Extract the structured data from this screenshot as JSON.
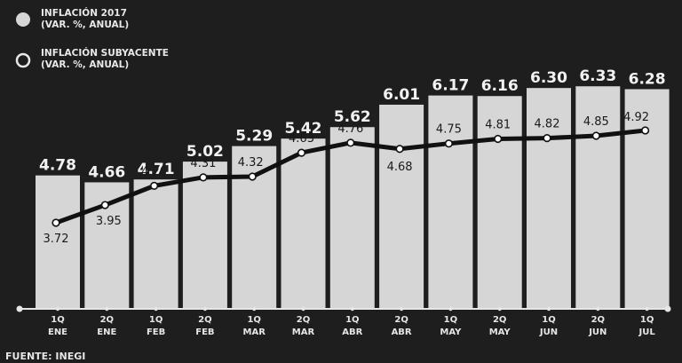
{
  "chart_data": {
    "type": "bar",
    "categories": [
      [
        "1Q",
        "ENE"
      ],
      [
        "2Q",
        "ENE"
      ],
      [
        "1Q",
        "FEB"
      ],
      [
        "2Q",
        "FEB"
      ],
      [
        "1Q",
        "MAR"
      ],
      [
        "2Q",
        "MAR"
      ],
      [
        "1Q",
        "ABR"
      ],
      [
        "2Q",
        "ABR"
      ],
      [
        "1Q",
        "MAY"
      ],
      [
        "2Q",
        "MAY"
      ],
      [
        "1Q",
        "JUN"
      ],
      [
        "2Q",
        "JUN"
      ],
      [
        "1Q",
        "JUL"
      ]
    ],
    "series": [
      {
        "name": "INFLACIÓN 2017",
        "name_sub": "(VAR. %, ANUAL)",
        "type": "bar",
        "color": "#d6d6d6",
        "values": [
          4.78,
          4.66,
          4.71,
          5.02,
          5.29,
          5.42,
          5.62,
          6.01,
          6.17,
          6.16,
          6.3,
          6.33,
          6.28
        ],
        "labels": [
          "4.78",
          "4.66",
          "4.71",
          "5.02",
          "5.29",
          "5.42",
          "5.62",
          "6.01",
          "6.17",
          "6.16",
          "6.30",
          "6.33",
          "6.28"
        ]
      },
      {
        "name": "INFLACIÓN SUBYACENTE",
        "name_sub": "(VAR. %, ANUAL)",
        "type": "line",
        "color": "#111111",
        "values": [
          3.72,
          3.95,
          4.2,
          4.31,
          4.32,
          4.63,
          4.76,
          4.68,
          4.75,
          4.81,
          4.82,
          4.85,
          4.92
        ],
        "labels": [
          "3.72",
          "3.95",
          "4.20",
          "4.31",
          "4.32",
          "4.63",
          "4.76",
          "4.68",
          "4.75",
          "4.81",
          "4.82",
          "4.85",
          "4.92"
        ]
      }
    ],
    "legend_position": "top-left",
    "source": "FUENTE: INEGI",
    "grid": false
  }
}
